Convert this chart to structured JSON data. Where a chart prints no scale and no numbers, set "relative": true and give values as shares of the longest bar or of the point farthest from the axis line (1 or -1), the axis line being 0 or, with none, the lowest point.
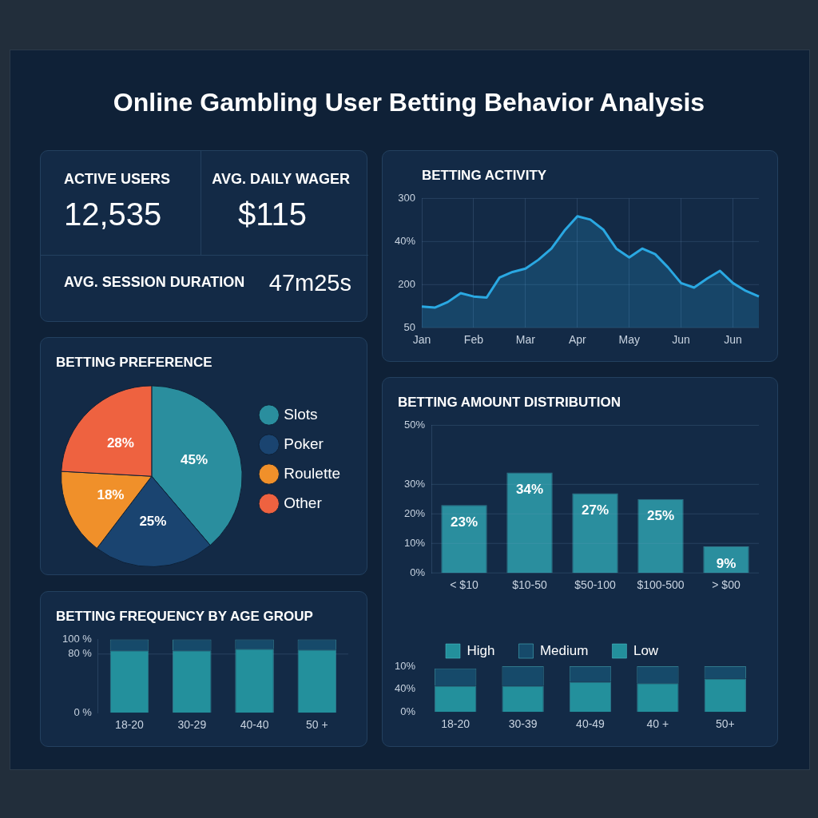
{
  "chart_data": [
    {
      "type": "other",
      "title": "Online Gambling User Betting Behavior Analysis",
      "annotations": [
        "ACTIVE USERS",
        "12,535",
        "AVG. DAILY WAGER",
        "$115",
        "AVG. SESSION DURATION",
        "47m25s"
      ]
    },
    {
      "type": "area",
      "title": "BETTING ACTIVITY",
      "relative": true,
      "annotations": [
        "50",
        "200",
        "40%",
        "300"
      ],
      "categories": [
        "Jan",
        null,
        null,
        null,
        "Feb",
        null,
        null,
        null,
        "Mar",
        null,
        null,
        null,
        "Apr",
        null,
        null,
        null,
        "May",
        null,
        null,
        null,
        "Jun",
        null,
        null,
        null,
        "Jun",
        null,
        null
      ],
      "values": [
        0.19,
        0.18,
        0.23,
        0.31,
        0.28,
        0.27,
        0.45,
        0.5,
        0.53,
        0.61,
        0.71,
        0.87,
        1,
        0.97,
        0.88,
        0.71,
        0.63,
        0.71,
        0.66,
        0.54,
        0.4,
        0.36,
        0.44,
        0.51,
        0.4,
        0.33,
        0.28
      ],
      "color": "#2aa8e2",
      "grid": true
    },
    {
      "type": "pie",
      "title": "BETTING PREFERENCE",
      "categories": [
        "Slots",
        "Poker",
        "Roulette",
        "Other"
      ],
      "values": [
        45,
        25,
        18,
        28
      ],
      "colors": [
        "#2a8e9e",
        "#1a4470",
        "#f0902a",
        "#ee6240"
      ],
      "value_labels": [
        "45%",
        "25%",
        "18%",
        "28%"
      ],
      "legend": "right"
    },
    {
      "type": "bar",
      "title": "BETTING AMOUNT DISTRIBUTION",
      "categories": [
        "< $10",
        "$10-50",
        "$50-100",
        "$100-500",
        "> $00"
      ],
      "values": [
        23,
        34,
        27,
        25,
        9
      ],
      "color": "#2a8e9e",
      "value_labels": [
        "23%",
        "34%",
        "27%",
        "25%",
        "9%"
      ],
      "ylim": [
        0,
        50
      ],
      "yticks": [
        {
          "value": 0,
          "label": "0%"
        },
        {
          "value": 10,
          "label": "10%"
        },
        {
          "value": 20,
          "label": "20%"
        },
        {
          "value": 30,
          "label": "30%"
        },
        {
          "value": 50,
          "label": "50%"
        }
      ],
      "grid": "y"
    },
    {
      "type": "bar",
      "title": "BETTING FREQUENCY BY AGE GROUP",
      "categories": [
        "18-20",
        "30-29",
        "40-40",
        "50 +"
      ],
      "stacked": true,
      "series": [
        {
          "color": "#23909c",
          "values": [
            85,
            85,
            87,
            86
          ]
        },
        {
          "color": "#164a6a",
          "values": [
            15,
            15,
            13,
            14
          ]
        }
      ],
      "ylim": [
        0,
        100
      ],
      "yticks": [
        {
          "value": 0,
          "label": "0 %"
        },
        {
          "value": 80,
          "label": "80 %"
        },
        {
          "value": 100,
          "label": "100 %"
        }
      ],
      "ref_lines": [
        {
          "axis": "y",
          "value": 80
        }
      ]
    },
    {
      "type": "bar",
      "categories": [
        "18-20",
        "30-39",
        "40-49",
        "40 +",
        "50+"
      ],
      "stacked": true,
      "legend": "top left",
      "relative": true,
      "annotations": [
        "0%",
        "40%",
        "10%"
      ],
      "series": [
        {
          "name": "High",
          "color": "#23909c",
          "values": [
            0.57,
            0.57,
            0.66,
            0.63,
            0.73
          ]
        },
        {
          "name": "Medium",
          "color": "#164a6a",
          "values": [
            0.38,
            0.43,
            0.34,
            0.37,
            0.27
          ]
        },
        {
          "name": "Low",
          "color": "#23909c",
          "values": [
            null,
            null,
            null,
            null,
            null
          ]
        }
      ]
    }
  ]
}
